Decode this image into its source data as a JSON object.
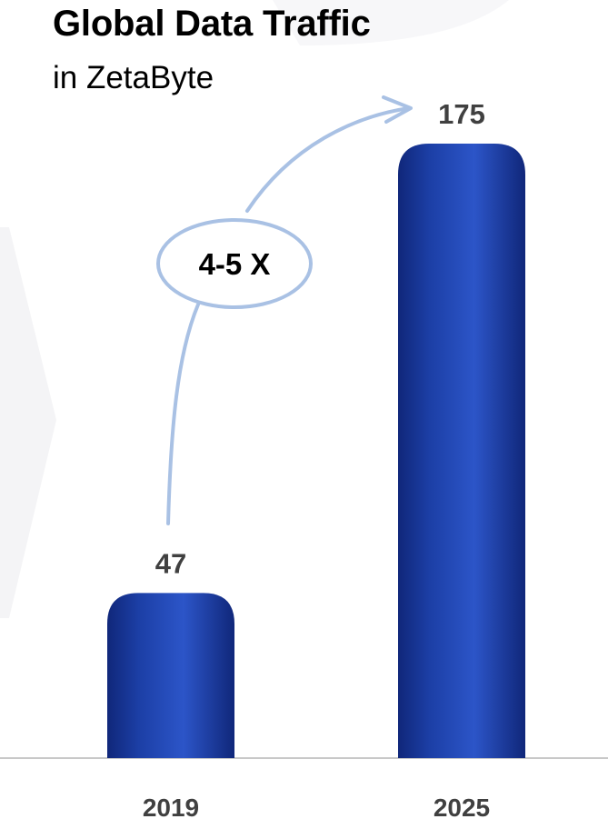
{
  "chart_data": {
    "type": "bar",
    "title": "Global Data Traffic",
    "subtitle": "in ZetaByte",
    "categories": [
      "2019",
      "2025"
    ],
    "values": [
      47,
      175
    ],
    "data_labels": [
      "47",
      "175"
    ],
    "annotation": "4-5 X",
    "xlabel": "",
    "ylabel": "",
    "ylim": [
      0,
      190
    ],
    "grid": false,
    "legend": "none"
  },
  "colors": {
    "bar": "#1c3fa6",
    "bar_dark": "#10277a",
    "bar_light": "#2c55c8",
    "arrow": "#a9c1e4",
    "text_gray": "#404040",
    "axis": "#c8c8c8",
    "background_shape": "#f4f4f6"
  }
}
